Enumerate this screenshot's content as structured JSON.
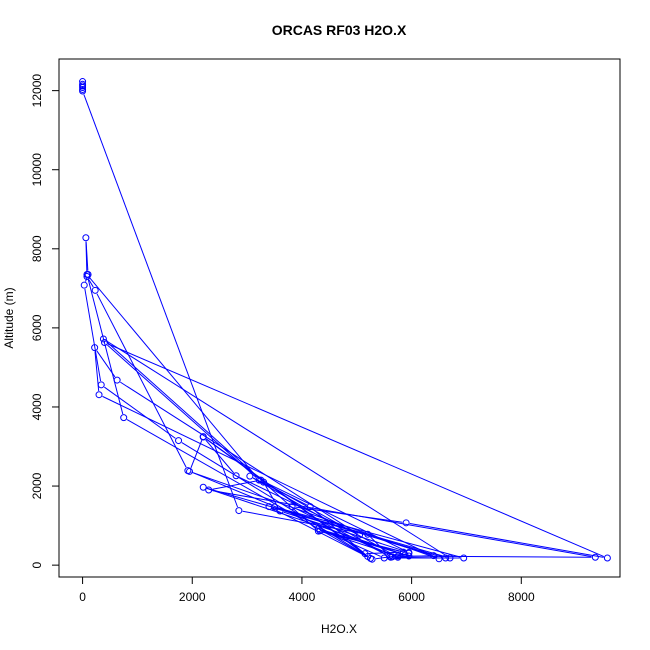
{
  "chart_data": {
    "type": "scatter",
    "title": "ORCAS RF03 H2O.X",
    "xlabel": "H2O.X",
    "ylabel": "Altitude (m)",
    "xlim": [
      -430,
      9800
    ],
    "ylim": [
      -300,
      12800
    ],
    "xticks": [
      0,
      2000,
      4000,
      6000,
      8000
    ],
    "yticks": [
      0,
      2000,
      4000,
      6000,
      8000,
      10000,
      12000
    ],
    "grid": false,
    "legend": "none",
    "colors": {
      "series": "#0000ff",
      "frame": "#000000"
    },
    "series": [
      {
        "markers": "open-circles",
        "connected": true,
        "points": [
          [
            0,
            12230
          ],
          [
            0,
            12160
          ],
          [
            0,
            12120
          ],
          [
            0,
            12080
          ],
          [
            0,
            12030
          ],
          [
            0,
            11990
          ],
          [
            2850,
            1380
          ],
          [
            5200,
            780
          ],
          [
            5620,
            200
          ],
          [
            6620,
            180
          ],
          [
            3400,
            1480
          ],
          [
            5280,
            150
          ],
          [
            5880,
            260
          ],
          [
            4300,
            920
          ],
          [
            5500,
            180
          ],
          [
            6950,
            180
          ],
          [
            3500,
            1470
          ],
          [
            6400,
            240
          ],
          [
            5650,
            210
          ],
          [
            5950,
            300
          ],
          [
            4330,
            870
          ],
          [
            5750,
            230
          ],
          [
            9350,
            200
          ],
          [
            2300,
            1900
          ],
          [
            3250,
            2150
          ],
          [
            5950,
            320
          ],
          [
            3600,
            1370
          ],
          [
            3300,
            2100
          ],
          [
            5750,
            200
          ],
          [
            1920,
            2390
          ],
          [
            230,
            6950
          ],
          [
            80,
            7300
          ],
          [
            60,
            8280
          ],
          [
            100,
            7350
          ],
          [
            30,
            7080
          ],
          [
            340,
            4560
          ],
          [
            1750,
            3150
          ],
          [
            5200,
            220
          ],
          [
            4150,
            1480
          ],
          [
            3050,
            2250
          ],
          [
            5600,
            220
          ],
          [
            3820,
            1480
          ],
          [
            5900,
            1070
          ],
          [
            9570,
            180
          ],
          [
            400,
            5630
          ],
          [
            3220,
            2150
          ],
          [
            80,
            7350
          ],
          [
            750,
            3730
          ],
          [
            5250,
            170
          ],
          [
            2200,
            3240
          ],
          [
            2800,
            2260
          ],
          [
            5050,
            760
          ],
          [
            630,
            4680
          ],
          [
            220,
            5500
          ],
          [
            300,
            4310
          ],
          [
            6500,
            160
          ],
          [
            1950,
            2370
          ],
          [
            2200,
            3250
          ],
          [
            5150,
            290
          ],
          [
            5850,
            330
          ],
          [
            4300,
            860
          ],
          [
            380,
            5720
          ],
          [
            6700,
            180
          ],
          [
            2200,
            1970
          ],
          [
            5950,
            230
          ]
        ]
      }
    ]
  }
}
